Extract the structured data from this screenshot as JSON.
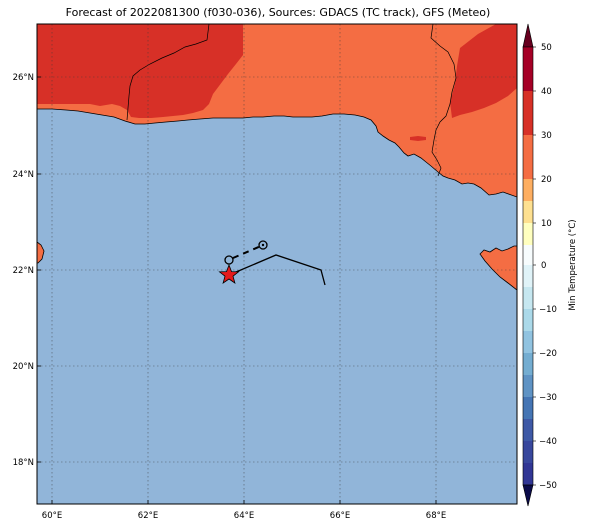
{
  "title": "Forecast of 2022081300 (f030-036), Sources: GDACS (TC track), GFS (Meteo)",
  "map": {
    "lon_range": [
      59.6,
      69.6
    ],
    "lat_range": [
      17.2,
      27.2
    ],
    "x_ticks": [
      "60°E",
      "62°E",
      "64°E",
      "66°E",
      "68°E"
    ],
    "y_ticks": [
      "26°N",
      "24°N",
      "22°N",
      "20°N",
      "18°N"
    ],
    "grid": true,
    "colors": {
      "ocean": "#91b5d9",
      "land_30_40": "#f46d43",
      "land_40_50": "#d73027",
      "coast": "#000000"
    }
  },
  "storm": {
    "current_marker": "red-star",
    "track_line": "solid-black",
    "forecast_points": "open-circle"
  },
  "colorbar": {
    "label": "Min Temperature (°C)",
    "ticks": [
      "50",
      "40",
      "30",
      "20",
      "10",
      "0",
      "−10",
      "−20",
      "−30",
      "−40",
      "−50"
    ],
    "colors": [
      "#a50026",
      "#d73027",
      "#f46d43",
      "#fdae61",
      "#fee090",
      "#ffffbf",
      "#e0f3f8",
      "#abd9e9",
      "#74add1",
      "#4575b4",
      "#313695"
    ]
  }
}
